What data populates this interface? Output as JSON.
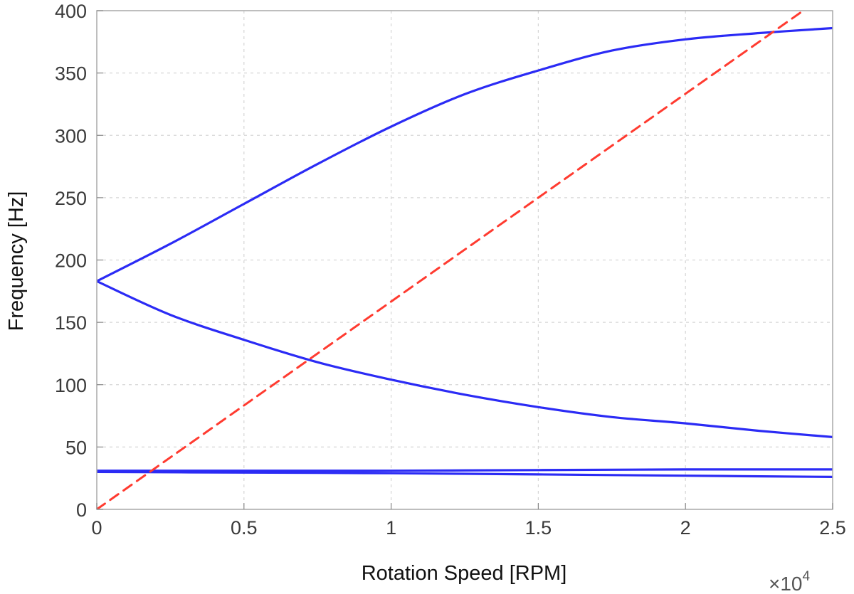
{
  "chart_data": {
    "type": "line",
    "title": "",
    "xlabel": "Rotation Speed [RPM]",
    "ylabel": "Frequency [Hz]",
    "x_exponent_label": "×10",
    "x_exponent_power": "4",
    "xlim": [
      0,
      2.5
    ],
    "ylim": [
      0,
      400
    ],
    "x_ticks": [
      0,
      0.5,
      1,
      1.5,
      2,
      2.5
    ],
    "x_tick_labels": [
      "0",
      "0.5",
      "1",
      "1.5",
      "2",
      "2.5"
    ],
    "y_ticks": [
      0,
      50,
      100,
      150,
      200,
      250,
      300,
      350,
      400
    ],
    "y_tick_labels": [
      "0",
      "50",
      "100",
      "150",
      "200",
      "250",
      "300",
      "350",
      "400"
    ],
    "grid": true,
    "series": [
      {
        "color": "#2b2bf5",
        "style": "solid",
        "x": [
          0,
          0.25,
          0.5,
          0.75,
          1.0,
          1.25,
          1.5,
          1.75,
          2.0,
          2.25,
          2.5
        ],
        "y": [
          183,
          213,
          245,
          277,
          307,
          333,
          352,
          368,
          377,
          382,
          386
        ]
      },
      {
        "color": "#2b2bf5",
        "style": "solid",
        "x": [
          0,
          0.25,
          0.5,
          0.75,
          1.0,
          1.25,
          1.5,
          1.75,
          2.0,
          2.25,
          2.5
        ],
        "y": [
          183,
          156,
          136,
          118,
          104,
          92,
          82,
          74,
          69,
          63,
          58
        ]
      },
      {
        "color": "#2b2bf5",
        "style": "solid",
        "x": [
          0,
          0.5,
          1.0,
          1.5,
          2.0,
          2.5
        ],
        "y": [
          31,
          31,
          31,
          31.5,
          32,
          32
        ]
      },
      {
        "color": "#2b2bf5",
        "style": "solid",
        "x": [
          0,
          0.5,
          1.0,
          1.5,
          2.0,
          2.5
        ],
        "y": [
          30,
          29.5,
          29,
          28,
          27,
          26
        ]
      },
      {
        "color": "#ff3b30",
        "style": "dashed",
        "x": [
          0,
          2.4
        ],
        "y": [
          0,
          400
        ]
      }
    ]
  }
}
